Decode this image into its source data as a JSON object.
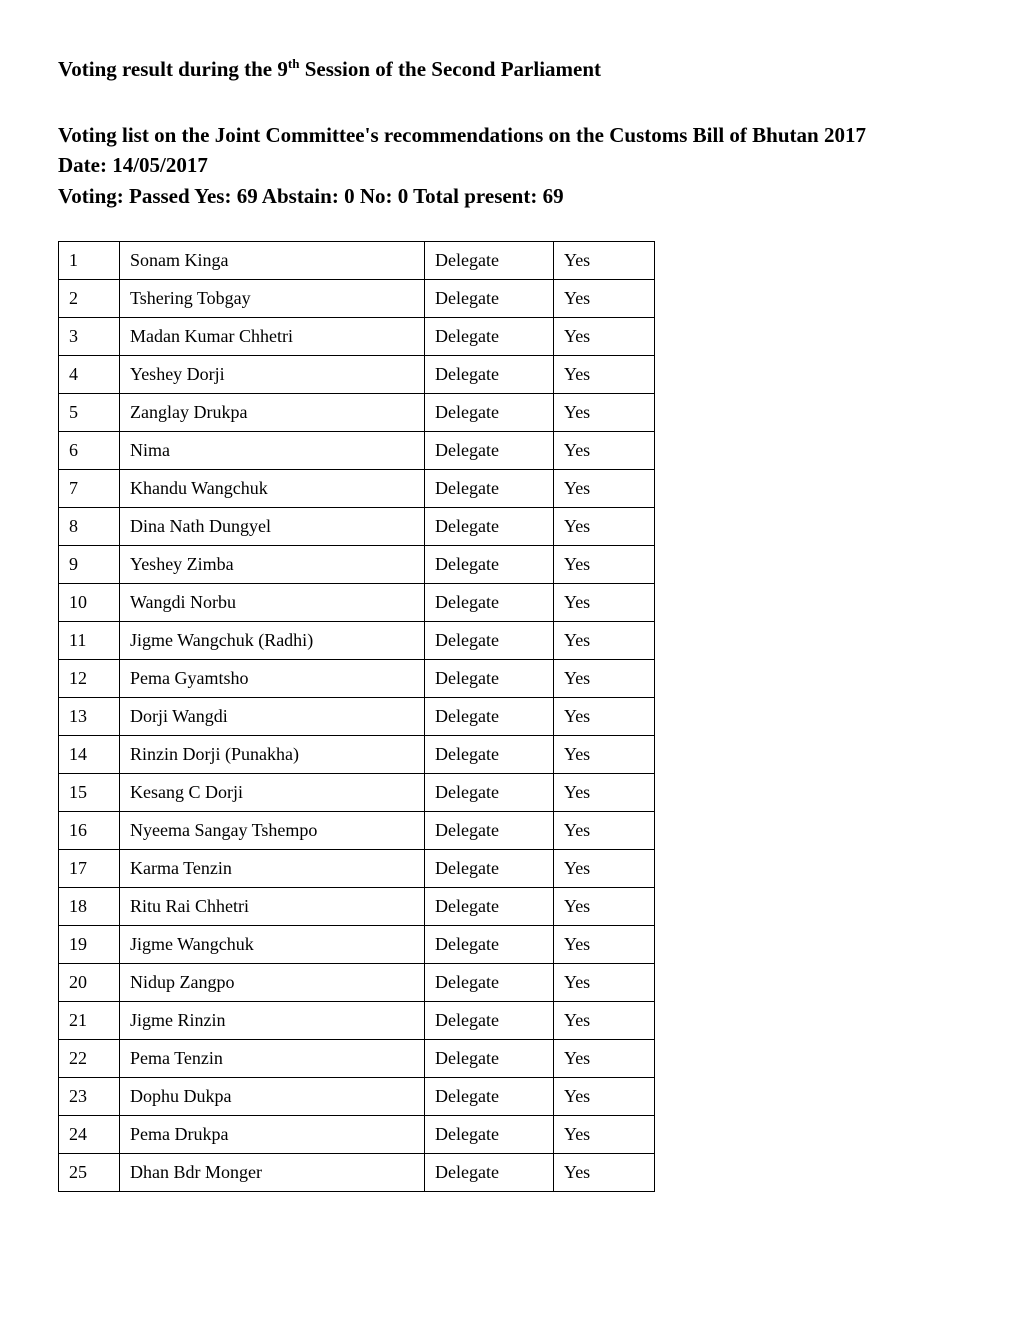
{
  "header": {
    "title_pre": "Voting result during the 9",
    "title_sup": "th",
    "title_post": " Session of the Second Parliament",
    "line1": "Voting list on the Joint Committee's recommendations on the Customs Bill of Bhutan 2017",
    "line2": "Date: 14/05/2017",
    "line3": "Voting: Passed Yes: 69 Abstain: 0 No: 0 Total present: 69"
  },
  "table": {
    "rows": [
      {
        "num": "1",
        "name": "Sonam Kinga",
        "role": "Delegate",
        "vote": "Yes"
      },
      {
        "num": "2",
        "name": "Tshering Tobgay",
        "role": "Delegate",
        "vote": "Yes"
      },
      {
        "num": "3",
        "name": "Madan Kumar Chhetri",
        "role": "Delegate",
        "vote": "Yes"
      },
      {
        "num": "4",
        "name": "Yeshey Dorji",
        "role": "Delegate",
        "vote": "Yes"
      },
      {
        "num": "5",
        "name": "Zanglay Drukpa",
        "role": "Delegate",
        "vote": "Yes"
      },
      {
        "num": "6",
        "name": "Nima",
        "role": "Delegate",
        "vote": "Yes"
      },
      {
        "num": "7",
        "name": "Khandu Wangchuk",
        "role": "Delegate",
        "vote": "Yes"
      },
      {
        "num": "8",
        "name": "Dina Nath Dungyel",
        "role": "Delegate",
        "vote": "Yes"
      },
      {
        "num": "9",
        "name": "Yeshey Zimba",
        "role": "Delegate",
        "vote": "Yes"
      },
      {
        "num": "10",
        "name": "Wangdi Norbu",
        "role": "Delegate",
        "vote": "Yes"
      },
      {
        "num": "11",
        "name": "Jigme Wangchuk (Radhi)",
        "role": "Delegate",
        "vote": "Yes"
      },
      {
        "num": "12",
        "name": "Pema Gyamtsho",
        "role": "Delegate",
        "vote": "Yes"
      },
      {
        "num": "13",
        "name": "Dorji Wangdi",
        "role": "Delegate",
        "vote": "Yes"
      },
      {
        "num": "14",
        "name": "Rinzin Dorji (Punakha)",
        "role": "Delegate",
        "vote": "Yes"
      },
      {
        "num": "15",
        "name": "Kesang C Dorji",
        "role": "Delegate",
        "vote": "Yes"
      },
      {
        "num": "16",
        "name": "Nyeema Sangay Tshempo",
        "role": "Delegate",
        "vote": "Yes"
      },
      {
        "num": "17",
        "name": "Karma Tenzin",
        "role": "Delegate",
        "vote": "Yes"
      },
      {
        "num": "18",
        "name": "Ritu Rai Chhetri",
        "role": "Delegate",
        "vote": "Yes"
      },
      {
        "num": "19",
        "name": "Jigme Wangchuk",
        "role": "Delegate",
        "vote": "Yes"
      },
      {
        "num": "20",
        "name": "Nidup Zangpo",
        "role": "Delegate",
        "vote": "Yes"
      },
      {
        "num": "21",
        "name": "Jigme Rinzin",
        "role": "Delegate",
        "vote": "Yes"
      },
      {
        "num": "22",
        "name": "Pema Tenzin",
        "role": "Delegate",
        "vote": "Yes"
      },
      {
        "num": "23",
        "name": "Dophu Dukpa",
        "role": "Delegate",
        "vote": "Yes"
      },
      {
        "num": "24",
        "name": "Pema Drukpa",
        "role": "Delegate",
        "vote": "Yes"
      },
      {
        "num": "25",
        "name": "Dhan Bdr Monger",
        "role": "Delegate",
        "vote": "Yes"
      }
    ]
  }
}
